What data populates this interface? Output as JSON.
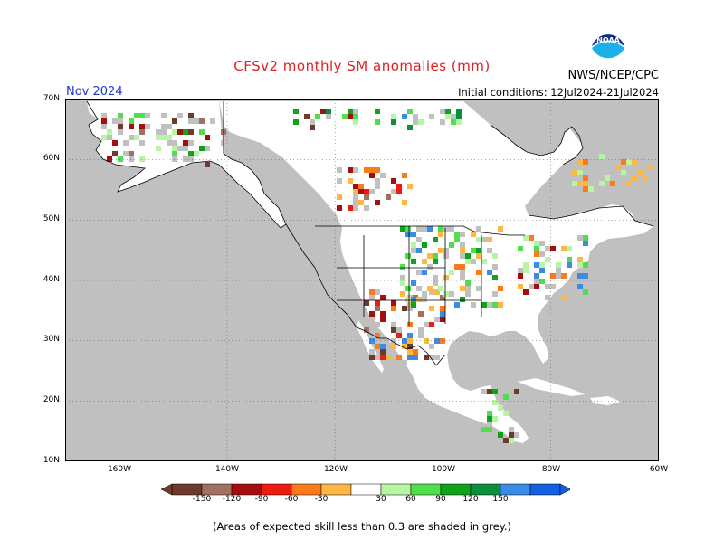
{
  "header": {
    "title": "CFSv2 monthly SM anomalies (mm)",
    "org": "NWS/NCEP/CPC",
    "month": "Nov 2024",
    "initial_conditions": "Initial conditions: 12Jul2024-21Jul2024"
  },
  "axes": {
    "lat_labels": [
      "70N",
      "60N",
      "50N",
      "40N",
      "30N",
      "20N",
      "10N"
    ],
    "lat_values": [
      70,
      60,
      50,
      40,
      30,
      20,
      10
    ],
    "lon_labels": [
      "160W",
      "140W",
      "120W",
      "100W",
      "80W",
      "60W"
    ],
    "lon_values": [
      -160,
      -140,
      -120,
      -100,
      -80,
      -60
    ],
    "lon_range": [
      -170,
      -60
    ],
    "lat_range": [
      10,
      70
    ]
  },
  "colorbar": {
    "tick_labels": [
      "-150",
      "-120",
      "-90",
      "-60",
      "-30",
      "30",
      "60",
      "90",
      "120",
      "150"
    ],
    "bins": [
      {
        "color": "#6e3b2a"
      },
      {
        "color": "#a27060"
      },
      {
        "color": "#a50e0e"
      },
      {
        "color": "#ee1c10"
      },
      {
        "color": "#fb7b1c"
      },
      {
        "color": "#fdb745"
      },
      {
        "color": "#ffffff"
      },
      {
        "color": "#b6f5a4"
      },
      {
        "color": "#50de4c"
      },
      {
        "color": "#0fa21c"
      },
      {
        "color": "#0a8f3c"
      },
      {
        "color": "#3b8ce6"
      },
      {
        "color": "#1460e0"
      }
    ]
  },
  "colors": {
    "land": "#ffffff",
    "ocean": "#c0c0c0",
    "low_skill": "#c0c0c0",
    "title": "#e02020",
    "month": "#1d36c8"
  },
  "footer": {
    "note": "(Areas of expected skill less than 0.3 are shaded in grey.)"
  },
  "logo": {
    "text": "NOAA"
  }
}
